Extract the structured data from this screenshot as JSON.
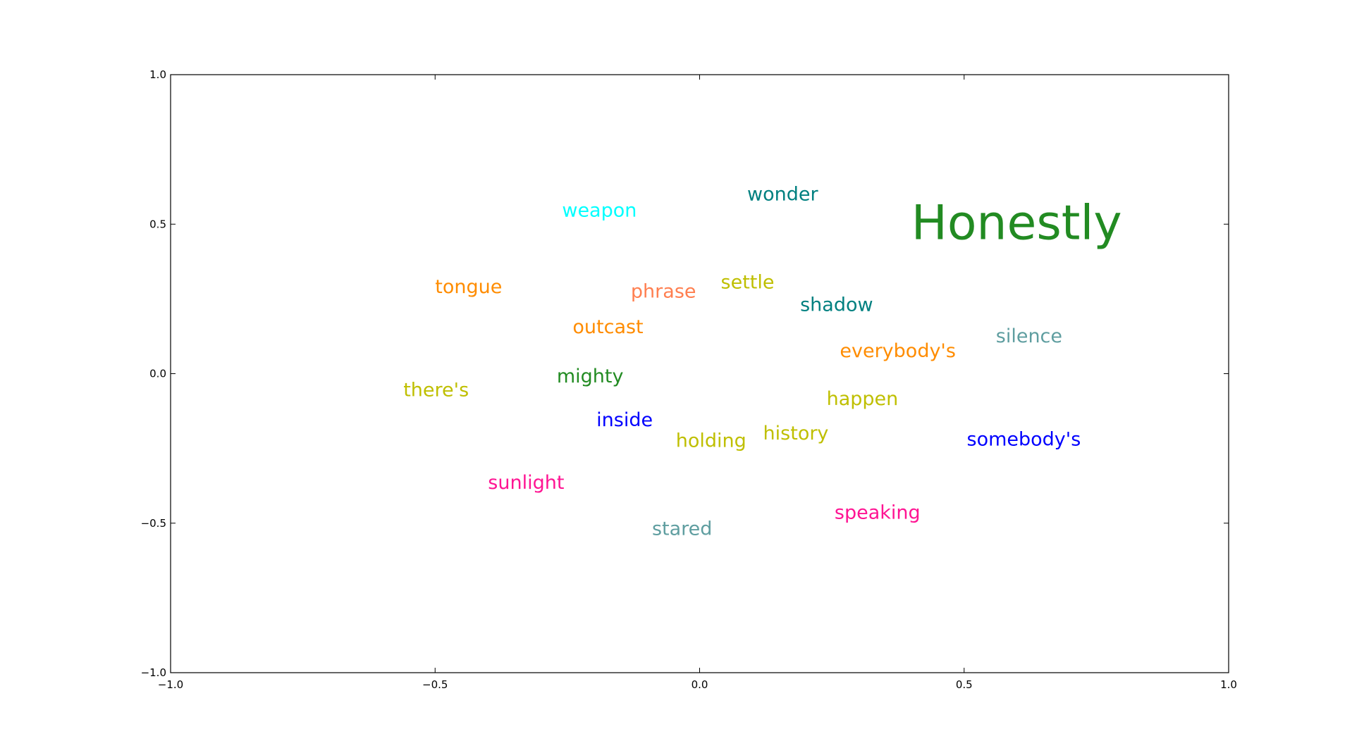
{
  "chart_data": {
    "type": "scatter",
    "title": "",
    "xlabel": "",
    "ylabel": "",
    "xlim": [
      -1.0,
      1.0
    ],
    "ylim": [
      -1.0,
      1.0
    ],
    "grid": false,
    "x_ticks": [
      "−1.0",
      "−0.5",
      "0.0",
      "0.5",
      "1.0"
    ],
    "y_ticks": [
      "−1.0",
      "−0.5",
      "0.0",
      "0.5",
      "1.0"
    ],
    "points": [
      {
        "text": "Honestly",
        "x": 0.4,
        "y": 0.45,
        "color": "#228B22",
        "emphasis": "large"
      },
      {
        "text": "wonder",
        "x": 0.09,
        "y": 0.58,
        "color": "#008080"
      },
      {
        "text": "weapon",
        "x": -0.26,
        "y": 0.525,
        "color": "#00FFFF"
      },
      {
        "text": "tongue",
        "x": -0.5,
        "y": 0.27,
        "color": "#FF8C00"
      },
      {
        "text": "phrase",
        "x": -0.13,
        "y": 0.255,
        "color": "#FF7F50"
      },
      {
        "text": "settle",
        "x": 0.04,
        "y": 0.285,
        "color": "#BFBF00"
      },
      {
        "text": "shadow",
        "x": 0.19,
        "y": 0.21,
        "color": "#008080"
      },
      {
        "text": "outcast",
        "x": -0.24,
        "y": 0.135,
        "color": "#FF8C00"
      },
      {
        "text": "silence",
        "x": 0.56,
        "y": 0.105,
        "color": "#5F9EA0"
      },
      {
        "text": "everybody's",
        "x": 0.265,
        "y": 0.055,
        "color": "#FF8C00"
      },
      {
        "text": "mighty",
        "x": -0.27,
        "y": -0.03,
        "color": "#228B22"
      },
      {
        "text": "there's",
        "x": -0.56,
        "y": -0.075,
        "color": "#BFBF00"
      },
      {
        "text": "happen",
        "x": 0.24,
        "y": -0.105,
        "color": "#BFBF00"
      },
      {
        "text": "inside",
        "x": -0.195,
        "y": -0.175,
        "color": "#0000FF"
      },
      {
        "text": "history",
        "x": 0.12,
        "y": -0.22,
        "color": "#BFBF00"
      },
      {
        "text": "holding",
        "x": -0.045,
        "y": -0.245,
        "color": "#BFBF00"
      },
      {
        "text": "somebody's",
        "x": 0.505,
        "y": -0.24,
        "color": "#0000FF"
      },
      {
        "text": "sunlight",
        "x": -0.4,
        "y": -0.385,
        "color": "#FF1493"
      },
      {
        "text": "speaking",
        "x": 0.255,
        "y": -0.485,
        "color": "#FF1493"
      },
      {
        "text": "stared",
        "x": -0.09,
        "y": -0.54,
        "color": "#5F9EA0"
      }
    ]
  }
}
